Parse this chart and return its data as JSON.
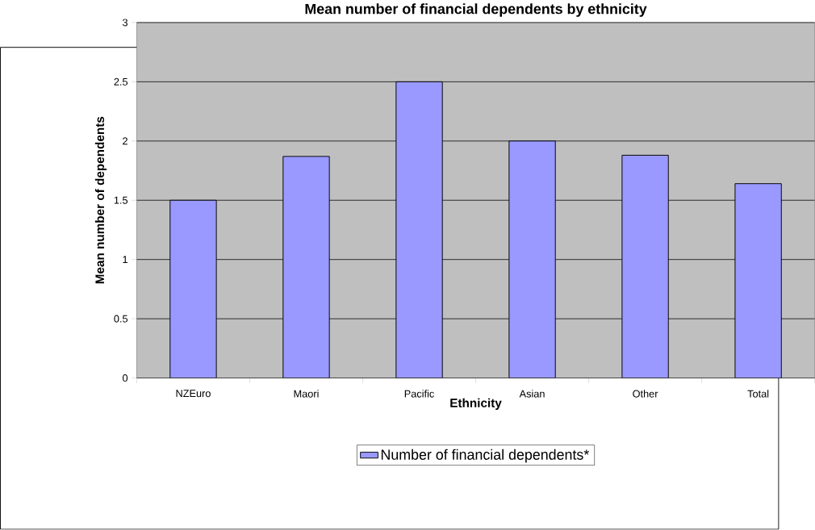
{
  "chart_data": {
    "type": "bar",
    "title": "Mean number of financial dependents by ethnicity",
    "xlabel": "Ethnicity",
    "ylabel": "Mean number of dependents",
    "categories": [
      "NZEuro",
      "Maori",
      "Pacific",
      "Asian",
      "Other",
      "Total"
    ],
    "series": [
      {
        "name": "Number of financial dependents*",
        "color": "#9999ff",
        "values": [
          1.5,
          1.87,
          2.5,
          2.0,
          1.88,
          1.64
        ]
      }
    ],
    "ylim": [
      0,
      3
    ],
    "yticks": [
      0,
      0.5,
      1,
      1.5,
      2,
      2.5,
      3
    ],
    "grid": "y",
    "legend": "bottom"
  }
}
